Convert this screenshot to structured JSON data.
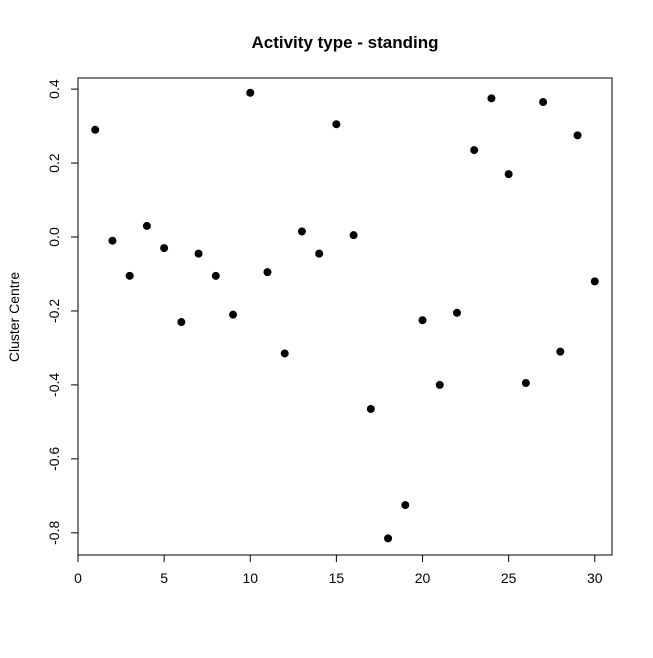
{
  "chart_data": {
    "type": "scatter",
    "title": "Activity type - standing",
    "xlabel": "",
    "ylabel": "Cluster Centre",
    "xlim": [
      0,
      31
    ],
    "ylim": [
      -0.86,
      0.43
    ],
    "x_ticks": [
      0,
      5,
      10,
      15,
      20,
      25,
      30
    ],
    "y_ticks": [
      -0.8,
      -0.6,
      -0.4,
      -0.2,
      0.0,
      0.2,
      0.4
    ],
    "grid": false,
    "marker_color": "#000000",
    "series": [
      {
        "x": [
          1,
          2,
          3,
          4,
          5,
          6,
          7,
          8,
          9,
          10,
          11,
          12,
          13,
          14,
          15,
          16,
          17,
          18,
          19,
          20,
          21,
          22,
          23,
          24,
          25,
          26,
          27,
          28,
          29,
          30
        ],
        "y": [
          0.29,
          -0.01,
          -0.105,
          0.03,
          -0.03,
          -0.23,
          -0.045,
          -0.105,
          -0.21,
          0.39,
          -0.095,
          -0.315,
          0.015,
          -0.045,
          0.305,
          0.005,
          -0.465,
          -0.815,
          -0.725,
          -0.225,
          -0.4,
          -0.205,
          0.235,
          0.375,
          0.17,
          -0.395,
          0.365,
          -0.31,
          0.275,
          -0.12
        ]
      }
    ]
  }
}
